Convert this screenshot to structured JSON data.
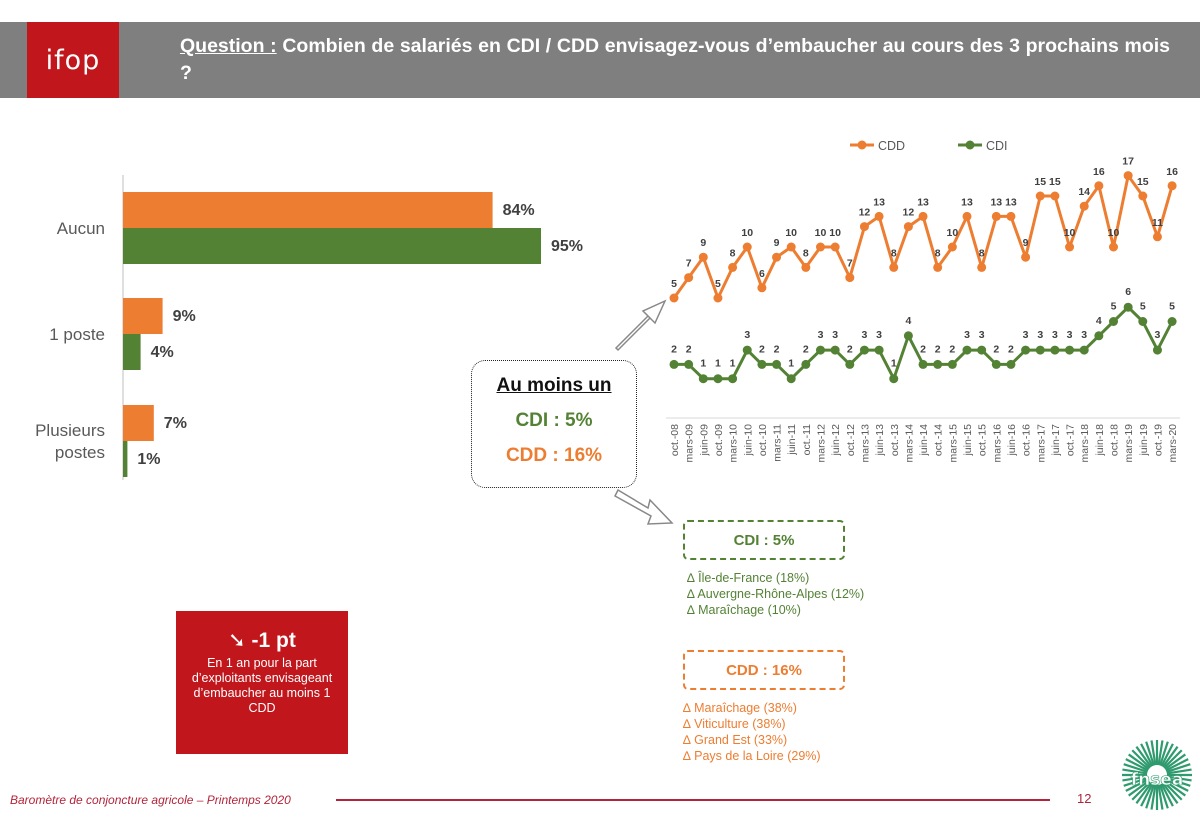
{
  "header": {
    "logo_text": "ifop",
    "question_label": "Question :",
    "question_text": "Combien de salariés en CDI / CDD envisagez-vous d’embaucher au cours des 3 prochains mois ?"
  },
  "colors": {
    "cdd": "#ed7d31",
    "cdi": "#548235",
    "brand_red": "#c0161c",
    "header_gray": "#7f7f7f"
  },
  "chart_data": [
    {
      "type": "bar",
      "orientation": "horizontal",
      "categories": [
        "Aucun",
        "1 poste",
        "Plusieurs postes"
      ],
      "series": [
        {
          "name": "CDD",
          "values": [
            84,
            9,
            7
          ],
          "labels": [
            "84%",
            "9%",
            "7%"
          ]
        },
        {
          "name": "CDI",
          "values": [
            95,
            4,
            1
          ],
          "labels": [
            "95%",
            "4%",
            "1%"
          ]
        }
      ],
      "xlim": [
        0,
        100
      ]
    },
    {
      "type": "line",
      "legend": [
        "CDD",
        "CDI"
      ],
      "legend_position": "top",
      "x": [
        "oct.-08",
        "mars-09",
        "juin-09",
        "oct.-09",
        "mars-10",
        "juin-10",
        "oct.-10",
        "mars-11",
        "juin-11",
        "oct.-11",
        "mars-12",
        "juin-12",
        "oct.-12",
        "mars-13",
        "juin-13",
        "oct.-13",
        "mars-14",
        "juin-14",
        "oct.-14",
        "mars-15",
        "juin-15",
        "oct.-15",
        "mars-16",
        "juin-16",
        "oct.-16",
        "mars-17",
        "juin-17",
        "oct.-17",
        "mars-18",
        "juin-18",
        "oct.-18",
        "mars-19",
        "juin-19",
        "oct.-19",
        "mars-20"
      ],
      "series": [
        {
          "name": "CDD",
          "values": [
            5,
            7,
            9,
            5,
            8,
            10,
            6,
            9,
            10,
            8,
            10,
            10,
            7,
            12,
            13,
            8,
            12,
            13,
            8,
            10,
            13,
            8,
            13,
            13,
            9,
            15,
            15,
            10,
            14,
            16,
            10,
            17,
            15,
            11,
            16
          ]
        },
        {
          "name": "CDI",
          "values": [
            2,
            2,
            1,
            1,
            1,
            3,
            2,
            2,
            1,
            2,
            3,
            3,
            2,
            3,
            3,
            1,
            4,
            2,
            2,
            2,
            3,
            3,
            2,
            2,
            3,
            3,
            3,
            3,
            3,
            4,
            5,
            6,
            5,
            3,
            5
          ]
        }
      ],
      "grid": false
    }
  ],
  "callout": {
    "title": "Au moins un",
    "cdi": "CDI : 5%",
    "cdd": "CDD : 16%"
  },
  "cdi_box": {
    "label": "CDI : 5%",
    "items": [
      "∆ Île-de-France (18%)",
      "∆ Auvergne-Rhône-Alpes (12%)",
      "∆ Maraîchage (10%)"
    ]
  },
  "cdd_box": {
    "label": "CDD : 16%",
    "items": [
      "∆ Maraîchage (38%)",
      "∆ Viticulture (38%)",
      "∆ Grand Est (33%)",
      "∆ Pays de la Loire (29%)"
    ]
  },
  "trend_box": {
    "value": "➘ -1 pt",
    "text": "En 1 an pour la part d’exploitants envisageant d’embaucher au moins 1 CDD"
  },
  "footer": {
    "text": "Baromètre de conjoncture agricole – Printemps 2020",
    "page": "12",
    "brand": "fnsea"
  }
}
